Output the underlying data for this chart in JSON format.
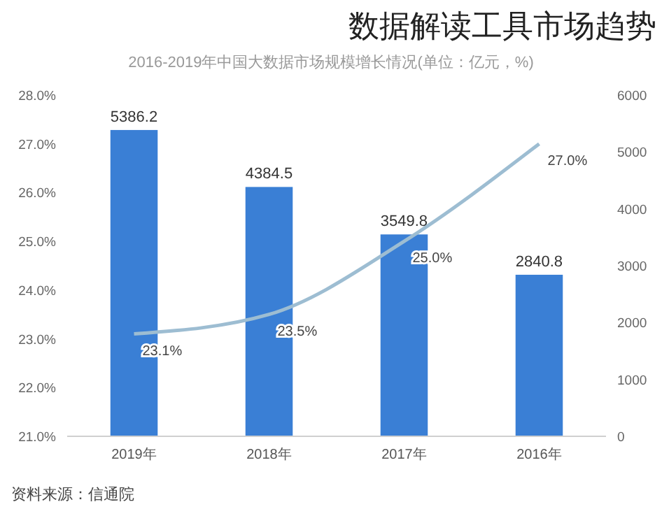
{
  "chart_data": {
    "type": "bar",
    "title": "数据解读工具市场趋势",
    "subtitle": "2016-2019年中国大数据市场规模增长情况(单位：亿元，%)",
    "categories": [
      "2019年",
      "2018年",
      "2017年",
      "2016年"
    ],
    "series": [
      {
        "axis": "y2",
        "color": "#3a7fd5",
        "values": [
          5386.2,
          4384.5,
          3549.8,
          2840.8
        ],
        "value_labels": [
          "5386.2",
          "4384.5",
          "3549.8",
          "2840.8"
        ]
      },
      {
        "type": "line",
        "axis": "y",
        "color": "#9dbdd2",
        "values": [
          23.1,
          23.5,
          25.0,
          27.0
        ],
        "value_labels": [
          "23.1%",
          "23.5%",
          "25.0%",
          "27.0%"
        ]
      }
    ],
    "ylim": [
      21,
      28
    ],
    "yticks": [
      {
        "value": 21,
        "label": "21.0%"
      },
      {
        "value": 22,
        "label": "22.0%"
      },
      {
        "value": 23,
        "label": "23.0%"
      },
      {
        "value": 24,
        "label": "24.0%"
      },
      {
        "value": 25,
        "label": "25.0%"
      },
      {
        "value": 26,
        "label": "26.0%"
      },
      {
        "value": 27,
        "label": "27.0%"
      },
      {
        "value": 28,
        "label": "28.0%"
      }
    ],
    "y2lim": [
      0,
      6000
    ],
    "y2ticks": [
      0,
      1000,
      2000,
      3000,
      4000,
      5000,
      6000
    ],
    "annotations": [
      "资料来源：信通院"
    ]
  }
}
